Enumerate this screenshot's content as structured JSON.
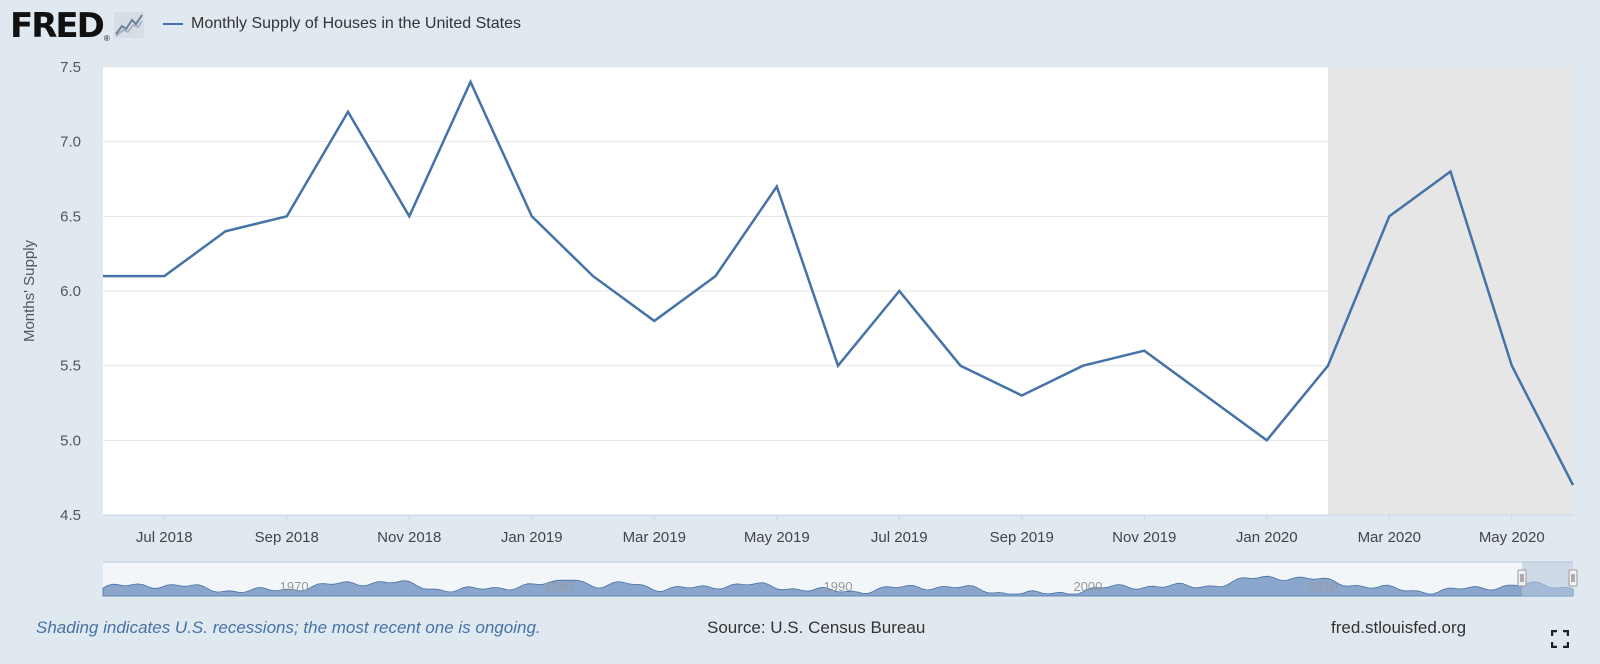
{
  "header": {
    "logo_text": "FRED",
    "logo_reg": "®",
    "legend_label": "Monthly Supply of Houses in the United States"
  },
  "chart_data": {
    "type": "line",
    "title": "Monthly Supply of Houses in the United States",
    "xlabel": "",
    "ylabel": "Months' Supply",
    "ylim": [
      4.5,
      7.5
    ],
    "y_ticks": [
      "4.5",
      "5.0",
      "5.5",
      "6.0",
      "6.5",
      "7.0",
      "7.5"
    ],
    "grid": true,
    "x_tick_labels": [
      "Jul 2018",
      "Sep 2018",
      "Nov 2018",
      "Jan 2019",
      "Mar 2019",
      "May 2019",
      "Jul 2019",
      "Sep 2019",
      "Nov 2019",
      "Jan 2020",
      "Mar 2020",
      "May 2020"
    ],
    "series": [
      {
        "name": "Monthly Supply of Houses in the United States",
        "color": "#4572a7",
        "x": [
          "Jun 2018",
          "Jul 2018",
          "Aug 2018",
          "Sep 2018",
          "Oct 2018",
          "Nov 2018",
          "Dec 2018",
          "Jan 2019",
          "Feb 2019",
          "Mar 2019",
          "Apr 2019",
          "May 2019",
          "Jun 2019",
          "Jul 2019",
          "Aug 2019",
          "Sep 2019",
          "Oct 2019",
          "Nov 2019",
          "Dec 2019",
          "Jan 2020",
          "Feb 2020",
          "Mar 2020",
          "Apr 2020",
          "May 2020",
          "Jun 2020"
        ],
        "values": [
          6.1,
          6.1,
          6.4,
          6.5,
          7.2,
          6.5,
          7.4,
          6.5,
          6.1,
          5.8,
          6.1,
          6.7,
          5.5,
          6.0,
          5.5,
          5.3,
          5.5,
          5.6,
          5.3,
          5.0,
          5.5,
          6.5,
          6.8,
          5.5,
          4.7
        ]
      }
    ],
    "recession_shading": {
      "start": "Feb 2020",
      "end": "Jun 2020",
      "color": "#e6e6e6"
    },
    "navigator": {
      "year_labels": [
        "1970",
        "1980",
        "1990",
        "2000",
        "2010"
      ]
    }
  },
  "footer": {
    "recession_note": "Shading indicates U.S. recessions; the most recent one is ongoing.",
    "source": "Source: U.S. Census Bureau",
    "url": "fred.stlouisfed.org"
  },
  "colors": {
    "background": "#e1e9f0",
    "series": "#4572a7",
    "recession": "#e6e6e6",
    "navigator_fill": "#8aa6cc"
  },
  "icons": {
    "fullscreen": "fullscreen-icon",
    "spark": "logo-sparkline-icon"
  }
}
